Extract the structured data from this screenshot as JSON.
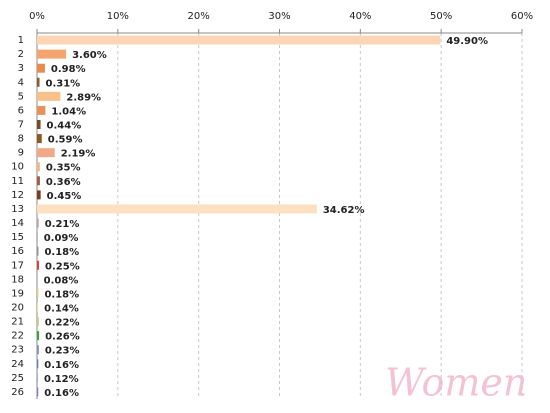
{
  "chart_data": {
    "type": "hbar",
    "categories": [
      "1",
      "2",
      "3",
      "4",
      "5",
      "6",
      "7",
      "8",
      "9",
      "10",
      "11",
      "12",
      "13",
      "14",
      "15",
      "16",
      "17",
      "18",
      "19",
      "20",
      "21",
      "22",
      "23",
      "24",
      "25",
      "26"
    ],
    "values": [
      49.9,
      3.6,
      0.98,
      0.31,
      2.89,
      1.04,
      0.44,
      0.59,
      2.19,
      0.35,
      0.36,
      0.45,
      34.62,
      0.21,
      0.09,
      0.18,
      0.25,
      0.08,
      0.18,
      0.14,
      0.22,
      0.26,
      0.23,
      0.16,
      0.12,
      0.16
    ],
    "value_labels": [
      "49.90%",
      "3.60%",
      "0.98%",
      "0.31%",
      "2.89%",
      "1.04%",
      "0.44%",
      "0.59%",
      "2.19%",
      "0.35%",
      "0.36%",
      "0.45%",
      "34.62%",
      "0.21%",
      "0.09%",
      "0.18%",
      "0.25%",
      "0.08%",
      "0.18%",
      "0.14%",
      "0.22%",
      "0.26%",
      "0.23%",
      "0.16%",
      "0.12%",
      "0.16%"
    ],
    "colors": [
      "#fcd5b4",
      "#f4a46e",
      "#e98b4f",
      "#8b5a2b",
      "#f9c08a",
      "#e9935a",
      "#7a4a2a",
      "#8a5a20",
      "#f2a98a",
      "#f5b48a",
      "#a06040",
      "#7a3d22",
      "#fde0c0",
      "#c0a0a0",
      "#a0a0a0",
      "#909090",
      "#e04040",
      "#a0a0c0",
      "#e0d080",
      "#f0e0a0",
      "#c0d080",
      "#40a040",
      "#8090c0",
      "#6080c0",
      "#a0b0d0",
      "#8080c0"
    ],
    "xlim": [
      0,
      60
    ],
    "xticks": [
      {
        "value": 0,
        "label": "0%"
      },
      {
        "value": 10,
        "label": "10%"
      },
      {
        "value": 20,
        "label": "20%"
      },
      {
        "value": 30,
        "label": "30%"
      },
      {
        "value": 40,
        "label": "40%"
      },
      {
        "value": 50,
        "label": "50%"
      },
      {
        "value": 60,
        "label": "60%"
      }
    ],
    "grid": true,
    "annotation": "Women"
  }
}
